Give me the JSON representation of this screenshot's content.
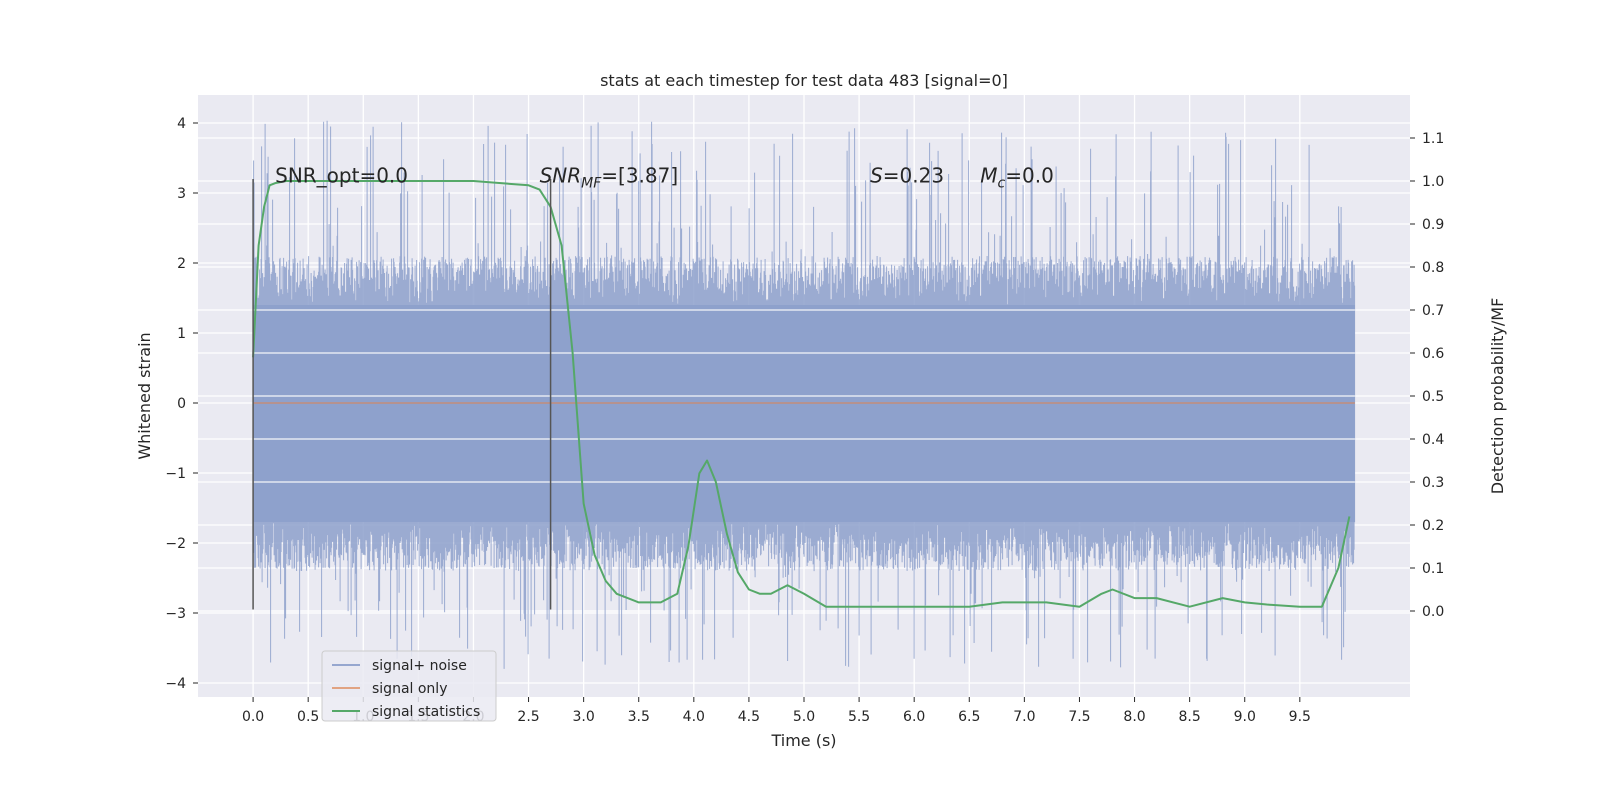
{
  "chart_data": {
    "type": "line",
    "title": "stats at each timestep for test data 483 [signal=0]",
    "xlabel": "Time (s)",
    "ylabel": "Whitened strain",
    "y2label": "Detection probability/MF",
    "xlim": [
      -0.5,
      10.5
    ],
    "ylim": [
      -4.2,
      4.4
    ],
    "y2lim": [
      -0.2,
      1.2
    ],
    "x_ticks": [
      "0.0",
      "0.5",
      "1.0",
      "1.5",
      "2.0",
      "2.5",
      "3.0",
      "3.5",
      "4.0",
      "4.5",
      "5.0",
      "5.5",
      "6.0",
      "6.5",
      "7.0",
      "7.5",
      "8.0",
      "8.5",
      "9.0",
      "9.5"
    ],
    "y_ticks": [
      "4",
      "3",
      "2",
      "1",
      "0",
      "−1",
      "−2",
      "−3",
      "−4"
    ],
    "y2_ticks": [
      "1.1",
      "1.0",
      "0.9",
      "0.8",
      "0.7",
      "0.6",
      "0.5",
      "0.4",
      "0.3",
      "0.2",
      "0.1",
      "0.0"
    ],
    "grid": true,
    "legend_position": "lower-left",
    "series": [
      {
        "name": "signal+ noise",
        "color": "#8da0cb",
        "axis": "left",
        "kind": "noise-band",
        "x_range": [
          0.0,
          10.0
        ],
        "core_range": [
          -1.7,
          1.4
        ],
        "peak_range": [
          -3.8,
          4.05
        ]
      },
      {
        "name": "signal only",
        "color": "#dd8452",
        "axis": "left",
        "x": [
          0.0,
          10.0
        ],
        "values": [
          0.0,
          0.0
        ]
      },
      {
        "name": "signal statistics",
        "color": "#55a868",
        "axis": "right",
        "x": [
          0.0,
          0.05,
          0.1,
          0.15,
          0.2,
          0.3,
          0.5,
          1.0,
          1.5,
          2.0,
          2.5,
          2.6,
          2.7,
          2.8,
          2.9,
          3.0,
          3.1,
          3.2,
          3.3,
          3.5,
          3.7,
          3.85,
          3.95,
          4.05,
          4.12,
          4.2,
          4.3,
          4.4,
          4.5,
          4.6,
          4.7,
          4.85,
          5.0,
          5.2,
          5.5,
          6.0,
          6.5,
          6.8,
          7.0,
          7.2,
          7.5,
          7.7,
          7.8,
          8.0,
          8.2,
          8.5,
          8.8,
          9.0,
          9.2,
          9.5,
          9.7,
          9.85,
          9.95
        ],
        "values": [
          0.59,
          0.85,
          0.94,
          0.99,
          0.995,
          1.0,
          1.0,
          1.0,
          1.0,
          1.0,
          0.99,
          0.98,
          0.94,
          0.85,
          0.6,
          0.25,
          0.13,
          0.07,
          0.04,
          0.02,
          0.02,
          0.04,
          0.15,
          0.32,
          0.35,
          0.3,
          0.18,
          0.09,
          0.05,
          0.04,
          0.04,
          0.06,
          0.04,
          0.01,
          0.01,
          0.01,
          0.01,
          0.02,
          0.02,
          0.02,
          0.01,
          0.04,
          0.05,
          0.03,
          0.03,
          0.01,
          0.03,
          0.02,
          0.015,
          0.01,
          0.01,
          0.1,
          0.22
        ]
      }
    ],
    "vlines": [
      0.0,
      2.7
    ],
    "vline_span": [
      -2.95,
      3.2
    ],
    "annotations": [
      {
        "text": "SNR_opt=0.0",
        "x": 0.2,
        "y": 3.15
      },
      {
        "text_main": "SNR",
        "text_sub": "MF",
        "text_rest": "=[3.87]",
        "x": 2.6,
        "y": 3.15
      },
      {
        "text_main": "S",
        "text_rest": "=0.23",
        "x": 5.6,
        "y": 3.15
      },
      {
        "text_main": "M",
        "text_sub": "c",
        "text_rest": "=0.0",
        "x": 6.6,
        "y": 3.15
      }
    ]
  }
}
